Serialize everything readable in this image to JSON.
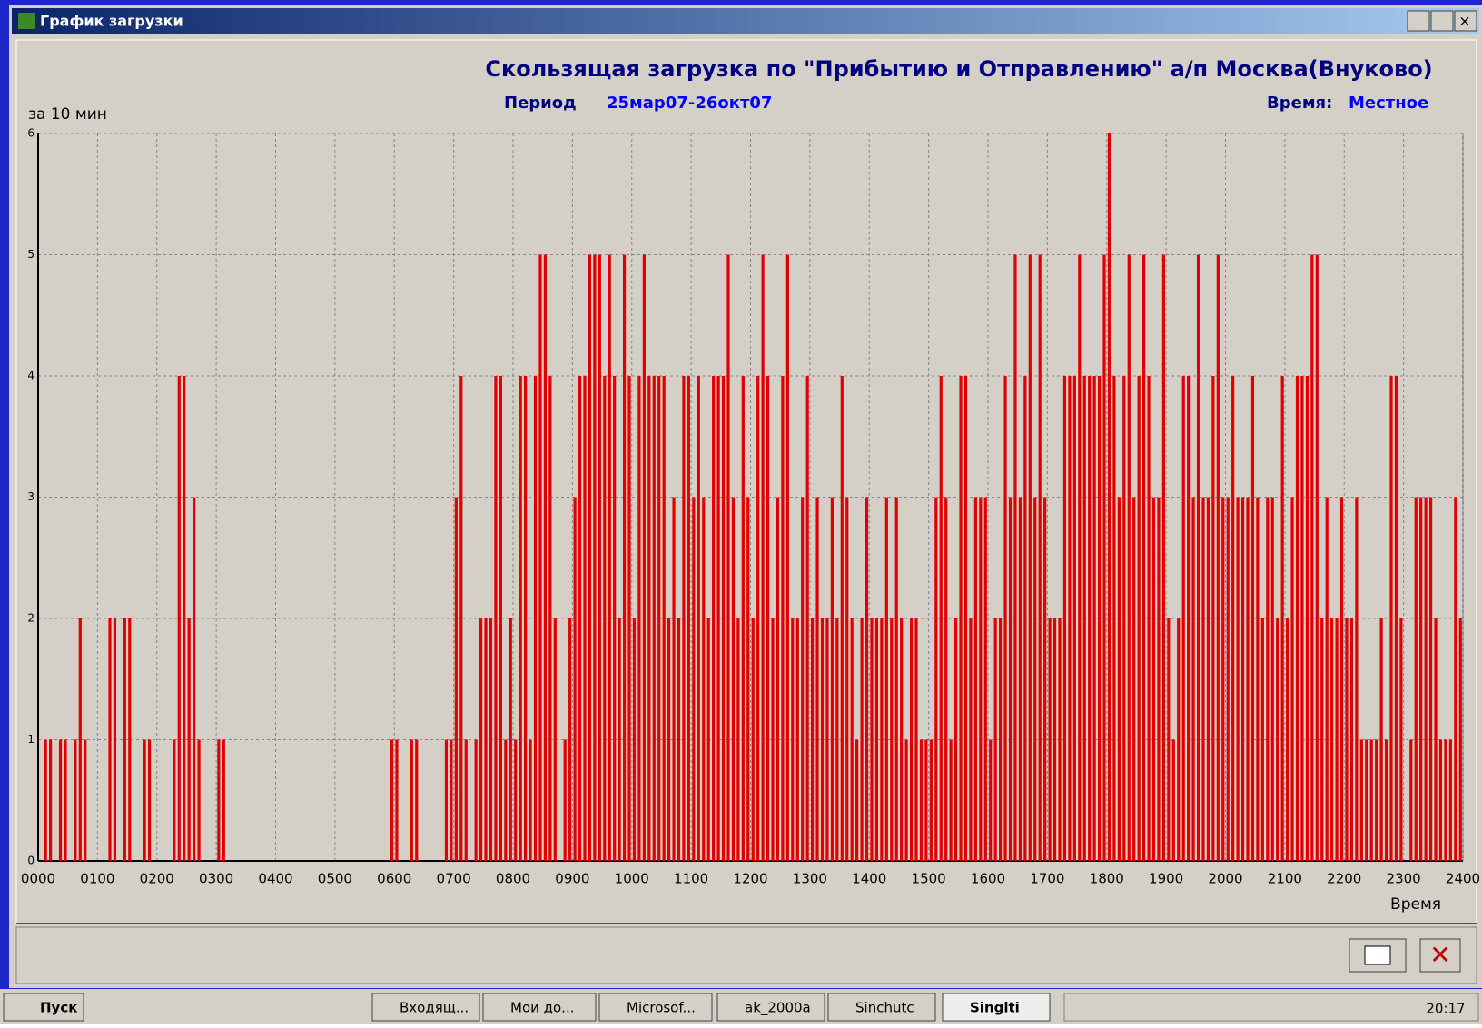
{
  "window": {
    "title": "График загрузки"
  },
  "chart_data": {
    "type": "bar",
    "title": "Скользящая загрузка по \"Прибытию и Отправлению\" а/п Москва(Внуково)",
    "period_label": "Период",
    "period": "25мар07-26окт07",
    "time_label": "Время:",
    "time_value": "Местное",
    "y_label": "за 10 мин",
    "x_label": "Время",
    "color": "#e00000",
    "grid": true,
    "ylim": [
      0,
      6
    ],
    "yticks": [
      0,
      1,
      2,
      3,
      4,
      5,
      6
    ],
    "xlim": [
      0,
      1440
    ],
    "xticks": [
      {
        "value": 0,
        "label": "0000"
      },
      {
        "value": 60,
        "label": "0100"
      },
      {
        "value": 120,
        "label": "0200"
      },
      {
        "value": 180,
        "label": "0300"
      },
      {
        "value": 240,
        "label": "0400"
      },
      {
        "value": 300,
        "label": "0500"
      },
      {
        "value": 360,
        "label": "0600"
      },
      {
        "value": 420,
        "label": "0700"
      },
      {
        "value": 480,
        "label": "0800"
      },
      {
        "value": 540,
        "label": "0900"
      },
      {
        "value": 600,
        "label": "1000"
      },
      {
        "value": 660,
        "label": "1100"
      },
      {
        "value": 720,
        "label": "1200"
      },
      {
        "value": 780,
        "label": "1300"
      },
      {
        "value": 840,
        "label": "1400"
      },
      {
        "value": 900,
        "label": "1500"
      },
      {
        "value": 960,
        "label": "1600"
      },
      {
        "value": 1020,
        "label": "1700"
      },
      {
        "value": 1080,
        "label": "1800"
      },
      {
        "value": 1140,
        "label": "1900"
      },
      {
        "value": 1200,
        "label": "2000"
      },
      {
        "value": 1260,
        "label": "2100"
      },
      {
        "value": 1320,
        "label": "2200"
      },
      {
        "value": 1380,
        "label": "2300"
      },
      {
        "value": 1440,
        "label": "2400"
      }
    ],
    "x": [
      0,
      5,
      10,
      15,
      20,
      25,
      30,
      35,
      40,
      45,
      50,
      55,
      60,
      65,
      70,
      75,
      80,
      85,
      90,
      95,
      100,
      105,
      110,
      115,
      120,
      125,
      130,
      135,
      140,
      145,
      150,
      155,
      160,
      165,
      170,
      175,
      180,
      185,
      190,
      195,
      200,
      205,
      210,
      215,
      220,
      225,
      230,
      235,
      240,
      245,
      250,
      255,
      260,
      265,
      270,
      275,
      280,
      285,
      290,
      295,
      300,
      305,
      310,
      315,
      320,
      325,
      330,
      335,
      340,
      345,
      350,
      355,
      360,
      365,
      370,
      375,
      380,
      385,
      390,
      395,
      400,
      405,
      410,
      415,
      420,
      425,
      430,
      435,
      440,
      445,
      450,
      455,
      460,
      465,
      470,
      475,
      480,
      485,
      490,
      495,
      500,
      505,
      510,
      515,
      520,
      525,
      530,
      535,
      540,
      545,
      550,
      555,
      560,
      565,
      570,
      575,
      580,
      585,
      590,
      595,
      600,
      605,
      610,
      615,
      620,
      625,
      630,
      635,
      640,
      645,
      650,
      655,
      660,
      665,
      670,
      675,
      680,
      685,
      690,
      695,
      700,
      705,
      710,
      715,
      720,
      725,
      730,
      735,
      740,
      745,
      750,
      755,
      760,
      765,
      770,
      775,
      780,
      785,
      790,
      795,
      800,
      805,
      810,
      815,
      820,
      825,
      830,
      835,
      840,
      845,
      850,
      855,
      860,
      865,
      870,
      875,
      880,
      885,
      890,
      895,
      900,
      905,
      910,
      915,
      920,
      925,
      930,
      935,
      940,
      945,
      950,
      955,
      960,
      965,
      970,
      975,
      980,
      985,
      990,
      995,
      1000,
      1005,
      1010,
      1015,
      1020,
      1025,
      1030,
      1035,
      1040,
      1045,
      1050,
      1055,
      1060,
      1065,
      1070,
      1075,
      1080,
      1085,
      1090,
      1095,
      1100,
      1105,
      1110,
      1115,
      1120,
      1125,
      1130,
      1135,
      1140,
      1145,
      1150,
      1155,
      1160,
      1165,
      1170,
      1175,
      1180,
      1185,
      1190,
      1195,
      1200,
      1205,
      1210,
      1215,
      1220,
      1225,
      1230,
      1235,
      1240,
      1245,
      1250,
      1255,
      1260,
      1265,
      1270,
      1275,
      1280,
      1285,
      1290,
      1295,
      1300,
      1305,
      1310,
      1315,
      1320,
      1325,
      1330,
      1335,
      1340,
      1345,
      1350,
      1355,
      1360,
      1365,
      1370,
      1375,
      1380,
      1385,
      1390,
      1395,
      1400,
      1405,
      1410,
      1415,
      1420,
      1425,
      1430,
      1435
    ],
    "values": [
      0,
      1,
      1,
      0,
      1,
      1,
      0,
      1,
      2,
      1,
      0,
      0,
      0,
      0,
      2,
      2,
      0,
      2,
      2,
      0,
      0,
      1,
      1,
      0,
      0,
      0,
      0,
      1,
      4,
      4,
      2,
      3,
      1,
      0,
      0,
      0,
      1,
      1,
      0,
      0,
      0,
      0,
      0,
      0,
      0,
      0,
      0,
      0,
      0,
      0,
      0,
      0,
      0,
      0,
      0,
      0,
      0,
      0,
      0,
      0,
      0,
      0,
      0,
      0,
      0,
      0,
      0,
      0,
      0,
      0,
      0,
      1,
      1,
      0,
      0,
      1,
      1,
      0,
      0,
      0,
      0,
      0,
      1,
      1,
      3,
      4,
      1,
      0,
      1,
      2,
      2,
      2,
      4,
      4,
      1,
      2,
      1,
      4,
      4,
      1,
      4,
      5,
      5,
      4,
      2,
      0,
      1,
      2,
      3,
      4,
      4,
      5,
      5,
      5,
      4,
      5,
      4,
      2,
      5,
      4,
      2,
      4,
      5,
      4,
      4,
      4,
      4,
      2,
      3,
      2,
      4,
      4,
      3,
      4,
      3,
      2,
      4,
      4,
      4,
      5,
      3,
      2,
      4,
      3,
      2,
      4,
      5,
      4,
      2,
      3,
      4,
      5,
      2,
      2,
      3,
      4,
      2,
      3,
      2,
      2,
      3,
      2,
      4,
      3,
      2,
      1,
      2,
      3,
      2,
      2,
      2,
      3,
      2,
      3,
      2,
      1,
      2,
      2,
      1,
      1,
      1,
      3,
      4,
      3,
      1,
      2,
      4,
      4,
      2,
      3,
      3,
      3,
      1,
      2,
      2,
      4,
      3,
      5,
      3,
      4,
      5,
      3,
      5,
      3,
      2,
      2,
      2,
      4,
      4,
      4,
      5,
      4,
      4,
      4,
      4,
      5,
      6,
      4,
      3,
      4,
      5,
      3,
      4,
      5,
      4,
      3,
      3,
      5,
      2,
      1,
      2,
      4,
      4,
      3,
      5,
      3,
      3,
      4,
      5,
      3,
      3,
      4,
      3,
      3,
      3,
      4,
      3,
      2,
      3,
      3,
      2,
      4,
      2,
      3,
      4,
      4,
      4,
      5,
      5,
      2,
      3,
      2,
      2,
      3,
      2,
      2,
      3,
      1,
      1,
      1,
      1,
      2,
      1,
      4,
      4,
      2,
      0,
      1,
      3,
      3,
      3,
      3,
      2,
      1,
      1,
      1,
      3,
      2
    ]
  },
  "taskbar": {
    "start": "Пуск",
    "items": [
      "Входящ...",
      "Мои до...",
      "Microsof...",
      "ak_2000a",
      "Sinchutc",
      "Singlti"
    ],
    "clock": "20:17"
  }
}
